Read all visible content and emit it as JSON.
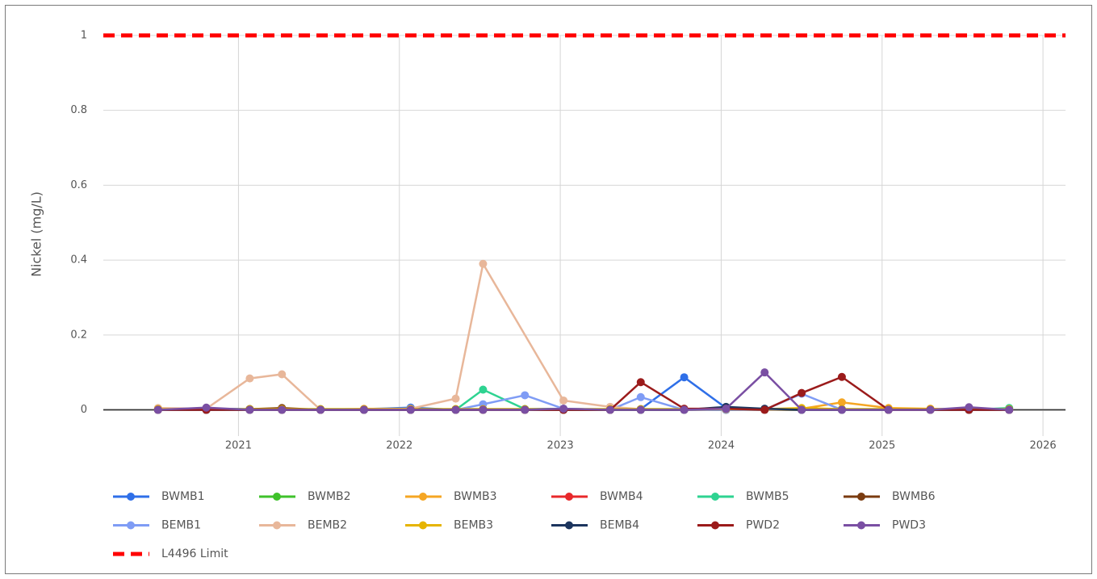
{
  "chart_data": {
    "type": "line",
    "y_label": "Nickel (mg/L)",
    "x": [
      2020.5,
      2020.8,
      2021.07,
      2021.27,
      2021.51,
      2021.78,
      2022.07,
      2022.35,
      2022.52,
      2022.78,
      2023.02,
      2023.31,
      2023.5,
      2023.77,
      2024.03,
      2024.27,
      2024.5,
      2024.75,
      2025.04,
      2025.3,
      2025.54,
      2025.79
    ],
    "xlim": [
      2020.16,
      2026.14
    ],
    "xticks": [
      2021,
      2022,
      2023,
      2024,
      2025,
      2026
    ],
    "ylim": [
      -0.07,
      1.03
    ],
    "yticks": [
      0,
      0.2,
      0.4,
      0.6,
      0.8,
      1
    ],
    "grid": true,
    "series": [
      {
        "name": "BWMB1",
        "color": "#2f6fe8",
        "values": [
          0.002,
          0.003,
          0.002,
          0.003,
          0,
          0.002,
          0.006,
          0,
          0,
          0.002,
          0.003,
          0,
          0.002,
          0.087,
          0.005,
          0.002,
          0,
          0,
          0,
          0,
          0,
          0
        ]
      },
      {
        "name": "BWMB2",
        "color": "#3fc22b",
        "values": [
          0.002,
          0.002,
          0.002,
          0.002,
          0.002,
          0.002,
          0.002,
          0.002,
          0.002,
          0.002,
          0.002,
          0.002,
          0.002,
          0.002,
          0.002,
          0.002,
          0.002,
          0.002,
          0.002,
          0.002,
          0.002,
          0.002
        ]
      },
      {
        "name": "BWMB3",
        "color": "#f5a623",
        "values": [
          0,
          0,
          0,
          0,
          0,
          0,
          0,
          0,
          0,
          0,
          0,
          0,
          0,
          0,
          0,
          0,
          0.003,
          0.02,
          0.005,
          0.003,
          0,
          0
        ]
      },
      {
        "name": "BWMB4",
        "color": "#e8282b",
        "values": [
          0.001,
          0.001,
          0.001,
          0.001,
          0.001,
          0.001,
          0.001,
          0.001,
          0.001,
          0.001,
          0.001,
          0.001,
          0.001,
          0.001,
          0.001,
          0.001,
          0.001,
          0.001,
          0.001,
          0.001,
          0.001,
          0.001
        ]
      },
      {
        "name": "BWMB5",
        "color": "#2ed391",
        "values": [
          0,
          0,
          0,
          0,
          0,
          0,
          0,
          0,
          0.054,
          0.002,
          0,
          0,
          0,
          0,
          0,
          0,
          0,
          0,
          0,
          0,
          0,
          0.005
        ]
      },
      {
        "name": "BWMB6",
        "color": "#7a3b0f",
        "values": [
          0,
          0,
          0.002,
          0.005,
          0,
          0,
          0,
          0,
          0,
          0,
          0,
          0,
          0,
          0,
          0,
          0,
          0,
          0,
          0,
          0,
          0,
          0
        ]
      },
      {
        "name": "BEMB1",
        "color": "#7f9cf5",
        "values": [
          0,
          0,
          0,
          0,
          0,
          0,
          0,
          0,
          0.015,
          0.039,
          0.003,
          0,
          0.034,
          0,
          0,
          0,
          0.043,
          0,
          0,
          0,
          0,
          0
        ]
      },
      {
        "name": "BEMB2",
        "color": "#e8b79a",
        "x": [
          2020.5,
          2020.8,
          2021.07,
          2021.27,
          2021.51,
          2021.78,
          2022.07,
          2022.35,
          2022.52,
          2023.02,
          2023.31,
          2023.5,
          2023.77,
          2024.03,
          2024.27,
          2024.5,
          2024.75,
          2025.04,
          2025.3,
          2025.54,
          2025.79
        ],
        "values": [
          0.005,
          0.003,
          0.084,
          0.095,
          0,
          0.003,
          0.003,
          0.03,
          0.39,
          0.025,
          0.008,
          0.002,
          0,
          0.002,
          0,
          0.002,
          0,
          0,
          0,
          0.002,
          0
        ]
      },
      {
        "name": "BEMB3",
        "color": "#e6b400",
        "values": [
          0.002,
          0.002,
          0.002,
          0.002,
          0.002,
          0.002,
          0.002,
          0.002,
          0.002,
          0.002,
          0.002,
          0.002,
          0.002,
          0.002,
          0.002,
          0.002,
          0.005,
          0.002,
          0.002,
          0.002,
          0.002,
          0.002
        ]
      },
      {
        "name": "BEMB4",
        "color": "#1c355e",
        "values": [
          0,
          0,
          0,
          0,
          0,
          0,
          0,
          0,
          0,
          0,
          0,
          0,
          0,
          0,
          0.008,
          0.003,
          0,
          0,
          0,
          0,
          0,
          0
        ]
      },
      {
        "name": "PWD2",
        "color": "#9b1b1b",
        "values": [
          0,
          0,
          0,
          0,
          0,
          0,
          0,
          0,
          0,
          0,
          0,
          0,
          0.074,
          0.003,
          0.003,
          0,
          0.045,
          0.088,
          0,
          0,
          0,
          0
        ]
      },
      {
        "name": "PWD3",
        "color": "#7a4fa3",
        "values": [
          0,
          0.006,
          0,
          0,
          0,
          0,
          0,
          0,
          0,
          0,
          0.003,
          0,
          0,
          0,
          0.003,
          0.1,
          0,
          0,
          0,
          0,
          0.007,
          0
        ]
      }
    ],
    "limit": {
      "name": "L4496 Limit",
      "value": 1,
      "color": "#ff0000"
    }
  }
}
